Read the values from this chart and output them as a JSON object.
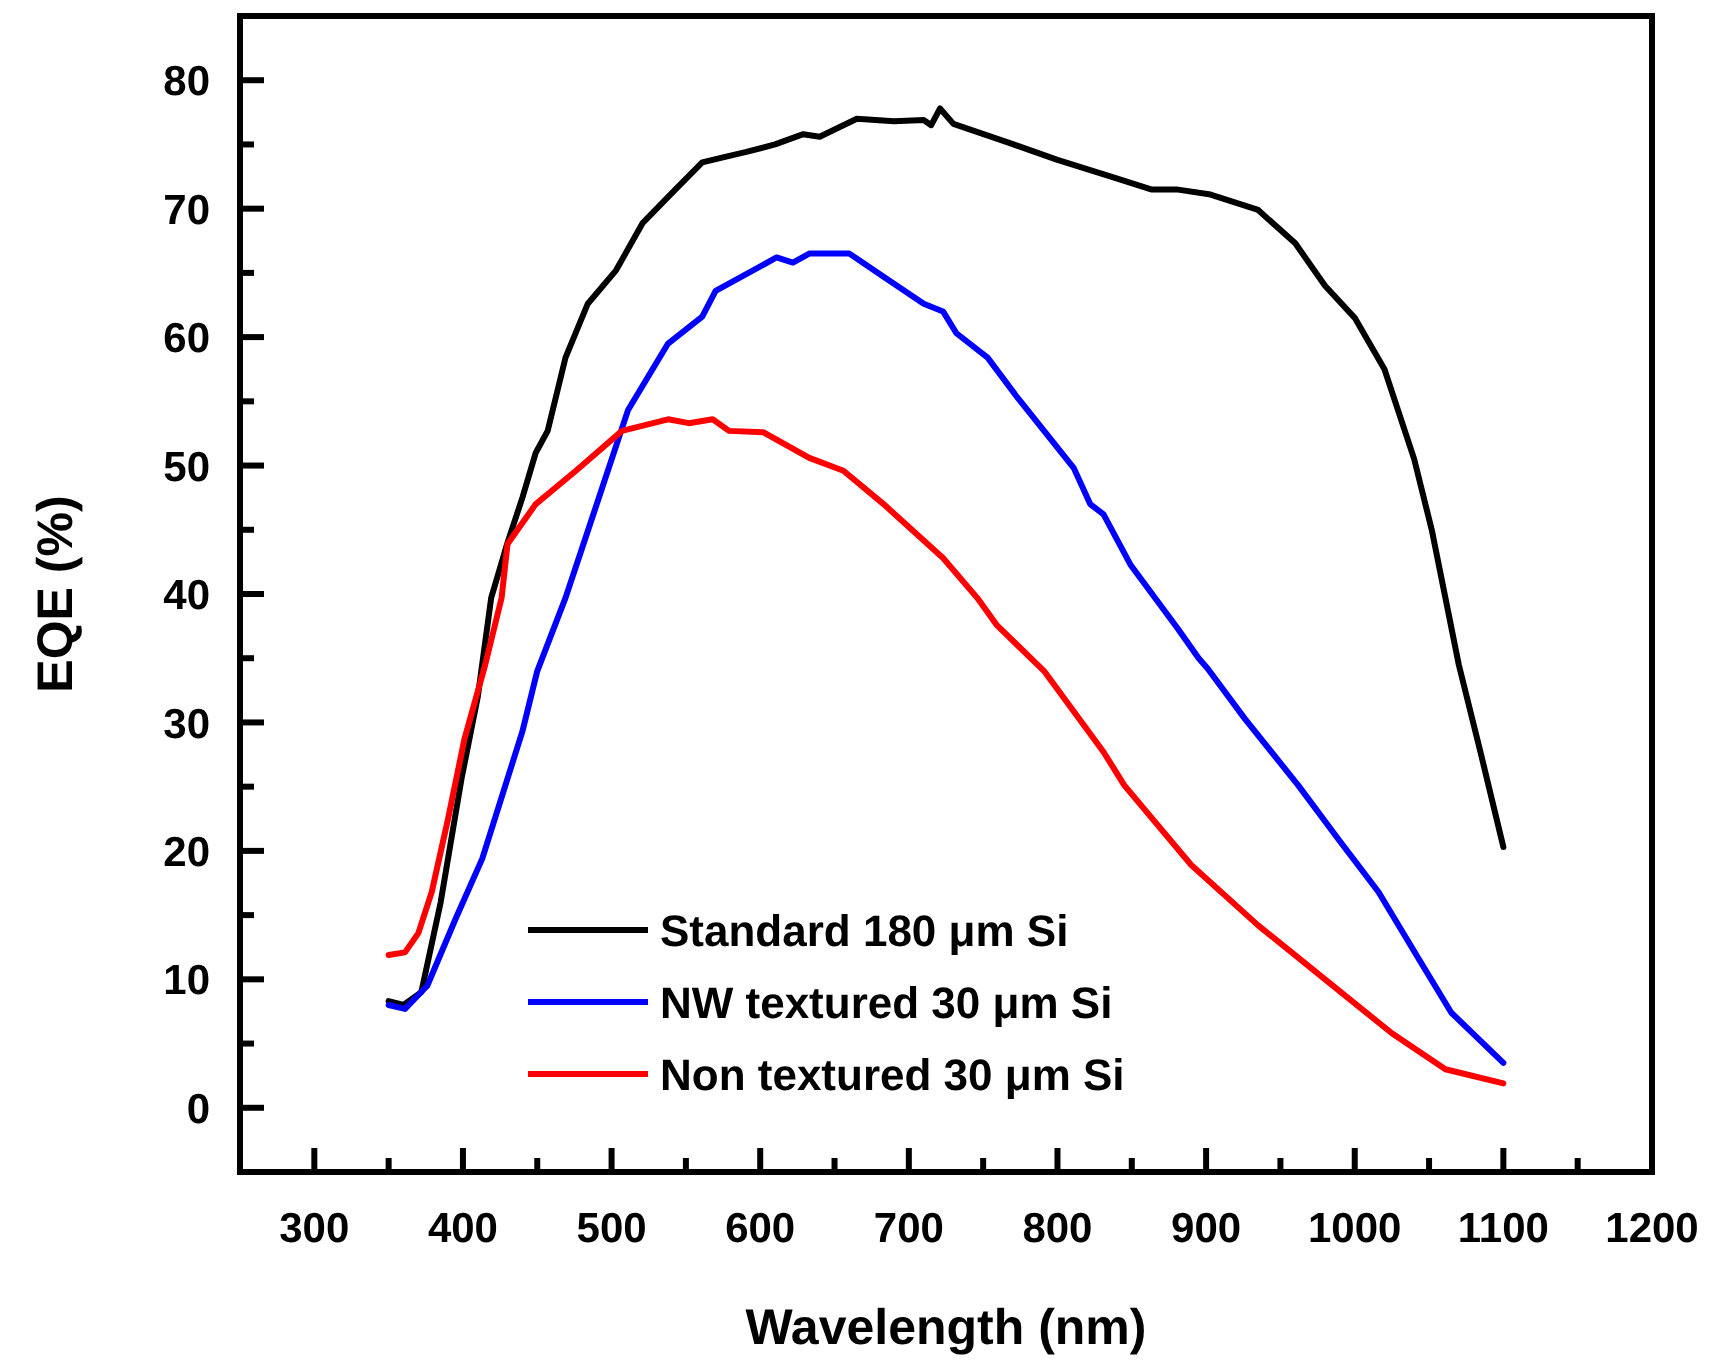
{
  "chart_data": {
    "type": "line",
    "xlabel": "Wavelength (nm)",
    "ylabel": "EQE (%)",
    "xlim": [
      250,
      1200
    ],
    "ylim": [
      -5,
      85
    ],
    "xticks": [
      300,
      {
        "value": 350,
        "label": null
      },
      400,
      {
        "value": 450,
        "label": null
      },
      500,
      {
        "value": 550,
        "label": null
      },
      600,
      {
        "value": 650,
        "label": null
      },
      700,
      {
        "value": 750,
        "label": null
      },
      800,
      {
        "value": 850,
        "label": null
      },
      900,
      {
        "value": 950,
        "label": null
      },
      1000,
      {
        "value": 1050,
        "label": null
      },
      1100,
      {
        "value": 1150,
        "label": null
      },
      1200
    ],
    "yticks": [
      0,
      {
        "value": 5,
        "label": null
      },
      10,
      {
        "value": 15,
        "label": null
      },
      20,
      {
        "value": 25,
        "label": null
      },
      30,
      {
        "value": 35,
        "label": null
      },
      40,
      {
        "value": 45,
        "label": null
      },
      50,
      {
        "value": 55,
        "label": null
      },
      60,
      {
        "value": 65,
        "label": null
      },
      70,
      {
        "value": 75,
        "label": null
      },
      80
    ],
    "grid": false,
    "legend": "bottom",
    "line_style": "solid",
    "marker": "none",
    "series": [
      {
        "name": "Standard 180 μm Si",
        "color": "#000000",
        "x": [
          350,
          360,
          372,
          385,
          399,
          410,
          419,
          430,
          440,
          449,
          457,
          469,
          484,
          503,
          521,
          543,
          561,
          575,
          590,
          610,
          629,
          640,
          665,
          690,
          710,
          715,
          721,
          730,
          768,
          800,
          836,
          863,
          880,
          903,
          935,
          960,
          980,
          1000,
          1020,
          1040,
          1052,
          1070,
          1085,
          1100
        ],
        "values": [
          8.3,
          8.0,
          9,
          16,
          25.6,
          32,
          39.7,
          44,
          47.5,
          51,
          52.7,
          58.4,
          62.6,
          65.2,
          68.9,
          71.5,
          73.6,
          74,
          74.4,
          75,
          75.8,
          75.6,
          77,
          76.8,
          76.9,
          76.5,
          77.8,
          76.6,
          75.1,
          73.8,
          72.5,
          71.5,
          71.5,
          71.1,
          69.9,
          67.3,
          64,
          61.5,
          57.5,
          50.5,
          44.9,
          34.5,
          27.5,
          20.3
        ]
      },
      {
        "name": "NW textured 30 μm Si",
        "color": "#0000ff",
        "x": [
          350,
          361,
          376,
          395,
          413,
          440,
          450,
          469,
          484,
          511,
          538,
          561,
          570,
          611,
          622,
          633,
          660,
          683,
          710,
          723,
          732,
          753,
          773,
          791,
          811,
          822,
          831,
          849,
          881,
          895,
          901,
          926,
          962,
          989,
          1016,
          1043,
          1065,
          1100
        ],
        "values": [
          8,
          7.7,
          9.5,
          14.7,
          19.4,
          29.3,
          34,
          39.7,
          44.9,
          54.3,
          59.5,
          61.6,
          63.6,
          66.2,
          65.8,
          66.5,
          66.5,
          64.7,
          62.6,
          62,
          60.3,
          58.4,
          55.3,
          52.7,
          49.8,
          47,
          46.2,
          42.3,
          37.3,
          35,
          34.2,
          30.3,
          25.1,
          20.9,
          16.8,
          11.6,
          7.4,
          3.5
        ]
      },
      {
        "name": "Non textured 30 μm Si",
        "color": "#ff0000",
        "x": [
          350,
          361,
          370,
          379,
          390,
          401,
          415,
          426,
          430,
          449,
          476,
          507,
          538,
          552,
          568,
          579,
          602,
          633,
          656,
          683,
          723,
          746,
          759,
          791,
          831,
          845,
          890,
          935,
          980,
          1025,
          1061,
          1100
        ],
        "values": [
          11.9,
          12.1,
          13.6,
          16.8,
          22.5,
          28.7,
          34.5,
          39.7,
          43.9,
          47,
          49.6,
          52.7,
          53.6,
          53.3,
          53.6,
          52.7,
          52.6,
          50.6,
          49.6,
          47,
          42.8,
          39.7,
          37.6,
          34,
          27.7,
          25.1,
          18.9,
          14.2,
          10,
          5.8,
          3,
          1.9
        ]
      }
    ]
  }
}
